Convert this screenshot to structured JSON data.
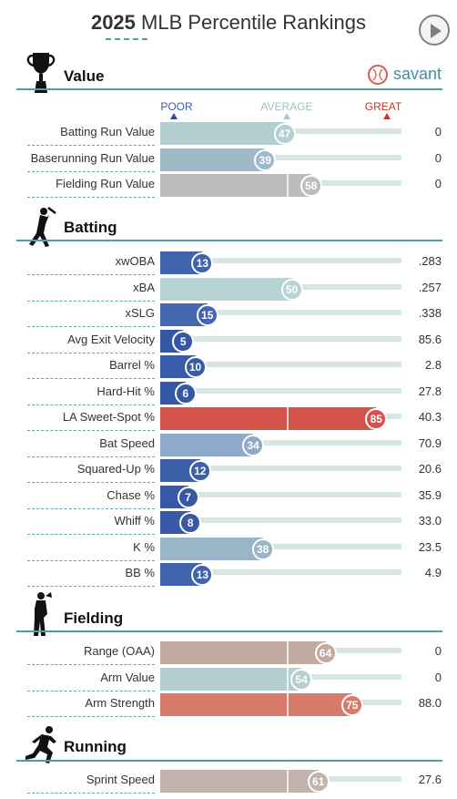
{
  "header": {
    "year": "2025",
    "title_rest": " MLB Percentile Rankings",
    "play_icon": "play-icon"
  },
  "brand": {
    "text": "savant",
    "logo_icon": "baseball-logo-icon"
  },
  "legend": {
    "poor": "POOR",
    "average": "AVERAGE",
    "great": "GREAT"
  },
  "colors": {
    "poor_dark": "#3a5da8",
    "poor_mid": "#5a7bbd",
    "below_avg": "#8eaac3",
    "average": "#b3cfd1",
    "neutral": "#b8b8b8",
    "above_avg": "#c3aaa0",
    "good": "#d97b6b",
    "great": "#d4534a",
    "track": "#d6e6e6",
    "accent": "#4f9fa0",
    "poor_arrow": "#2f4f8f",
    "average_arrow": "#aac9c9",
    "great_arrow": "#c33b2f"
  },
  "sections": {
    "value": {
      "title": "Value",
      "icon": "trophy-icon"
    },
    "batting": {
      "title": "Batting",
      "icon": "batter-icon"
    },
    "fielding": {
      "title": "Fielding",
      "icon": "fielder-icon"
    },
    "running": {
      "title": "Running",
      "icon": "runner-icon"
    }
  },
  "chart_data": {
    "type": "bar",
    "title": "2025 MLB Percentile Rankings",
    "xlim": [
      0,
      100
    ],
    "groups": [
      {
        "name": "Value",
        "metrics": [
          {
            "label": "Batting Run Value",
            "percentile": 47,
            "value": "0",
            "color": "#b3cfd1"
          },
          {
            "label": "Baserunning Run Value",
            "percentile": 39,
            "value": "0",
            "color": "#9fb9c9"
          },
          {
            "label": "Fielding Run Value",
            "percentile": 58,
            "value": "0",
            "color": "#bcbcbc"
          }
        ]
      },
      {
        "name": "Batting",
        "metrics": [
          {
            "label": "xwOBA",
            "percentile": 13,
            "value": ".283",
            "color": "#3f63ad"
          },
          {
            "label": "xBA",
            "percentile": 50,
            "value": ".257",
            "color": "#b7d3d3"
          },
          {
            "label": "xSLG",
            "percentile": 15,
            "value": ".338",
            "color": "#4467b0"
          },
          {
            "label": "Avg Exit Velocity",
            "percentile": 5,
            "value": "85.6",
            "color": "#3556a2"
          },
          {
            "label": "Barrel %",
            "percentile": 10,
            "value": "2.8",
            "color": "#3a5ca8"
          },
          {
            "label": "Hard-Hit %",
            "percentile": 6,
            "value": "27.8",
            "color": "#3657a3"
          },
          {
            "label": "LA Sweet-Spot %",
            "percentile": 85,
            "value": "40.3",
            "color": "#d4534a"
          },
          {
            "label": "Bat Speed",
            "percentile": 34,
            "value": "70.9",
            "color": "#8eaac8"
          },
          {
            "label": "Squared-Up %",
            "percentile": 12,
            "value": "20.6",
            "color": "#3d60ab"
          },
          {
            "label": "Chase %",
            "percentile": 7,
            "value": "35.9",
            "color": "#3758a4"
          },
          {
            "label": "Whiff %",
            "percentile": 8,
            "value": "33.0",
            "color": "#3859a5"
          },
          {
            "label": "K %",
            "percentile": 38,
            "value": "23.5",
            "color": "#9ab4c8"
          },
          {
            "label": "BB %",
            "percentile": 13,
            "value": "4.9",
            "color": "#3f63ad"
          }
        ]
      },
      {
        "name": "Fielding",
        "metrics": [
          {
            "label": "Range (OAA)",
            "percentile": 64,
            "value": "0",
            "color": "#c3aaa0"
          },
          {
            "label": "Arm Value",
            "percentile": 54,
            "value": "0",
            "color": "#b5cfd0"
          },
          {
            "label": "Arm Strength",
            "percentile": 75,
            "value": "88.0",
            "color": "#d97b6b"
          }
        ]
      },
      {
        "name": "Running",
        "metrics": [
          {
            "label": "Sprint Speed",
            "percentile": 61,
            "value": "27.6",
            "color": "#c3b3ae"
          }
        ]
      }
    ]
  }
}
